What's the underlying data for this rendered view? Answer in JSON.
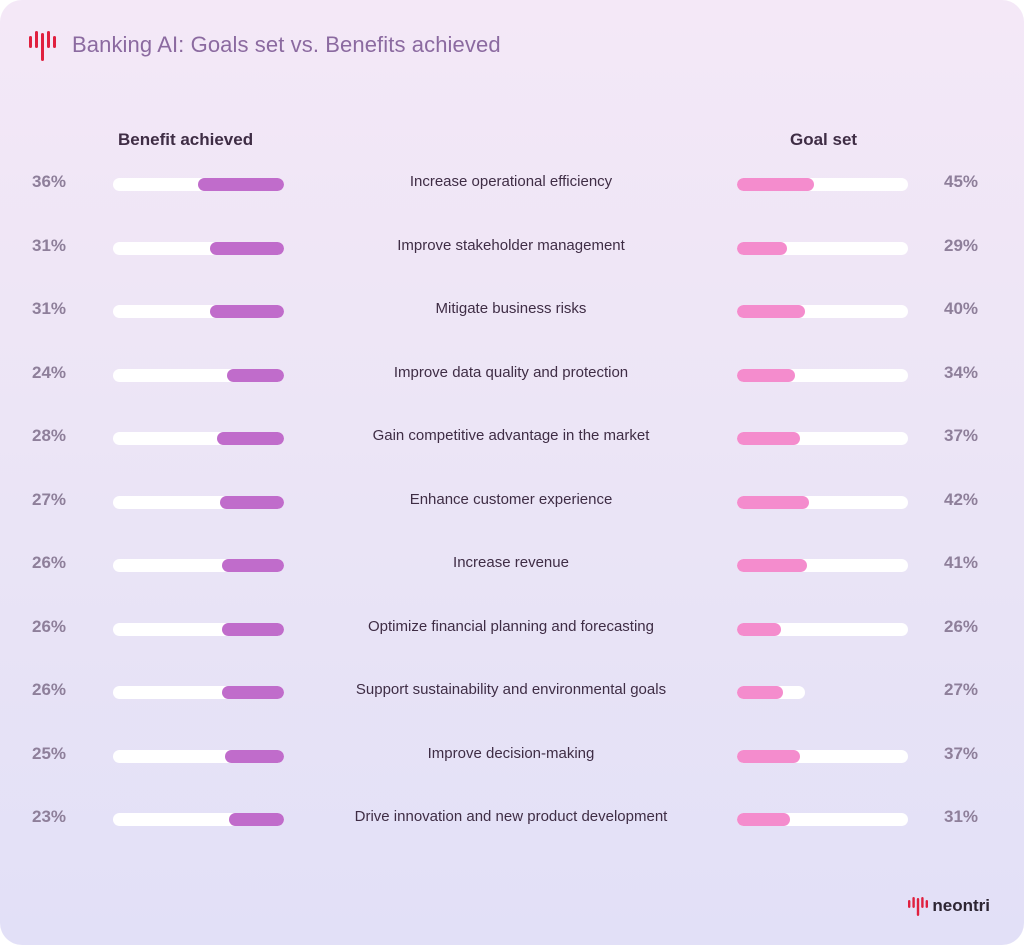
{
  "header": {
    "title": "Banking AI: Goals set vs. Benefits achieved",
    "logo_icon": "neontri-bars-icon"
  },
  "brand": {
    "name": "neontri"
  },
  "colors": {
    "benefit": "#c06ccb",
    "goal": "#f48ccd",
    "track": "#ffffff",
    "title": "#8b6aa0"
  },
  "chart_data": {
    "type": "bar",
    "layout": "diverging-horizontal",
    "left_header": "Benefit achieved",
    "right_header": "Goal set",
    "categories": [
      "Increase operational efficiency",
      "Improve stakeholder management",
      "Mitigate business risks",
      "Improve data quality and protection",
      "Gain competitive advantage in the market",
      "Enhance customer experience",
      "Increase revenue",
      "Optimize financial planning and forecasting",
      "Support sustainability and environmental goals",
      "Improve decision-making",
      "Drive innovation and new product development"
    ],
    "series": [
      {
        "name": "Benefit achieved",
        "values": [
          36,
          31,
          31,
          24,
          28,
          27,
          26,
          26,
          26,
          25,
          23
        ],
        "labels": [
          "36%",
          "31%",
          "31%",
          "24%",
          "28%",
          "27%",
          "26%",
          "26%",
          "26%",
          "25%",
          "23%"
        ]
      },
      {
        "name": "Goal set",
        "values": [
          45,
          29,
          40,
          34,
          37,
          42,
          41,
          26,
          27,
          37,
          31
        ],
        "labels": [
          "45%",
          "29%",
          "40%",
          "34%",
          "37%",
          "42%",
          "41%",
          "26%",
          "27%",
          "37%",
          "31%"
        ]
      }
    ],
    "value_unit": "%"
  }
}
